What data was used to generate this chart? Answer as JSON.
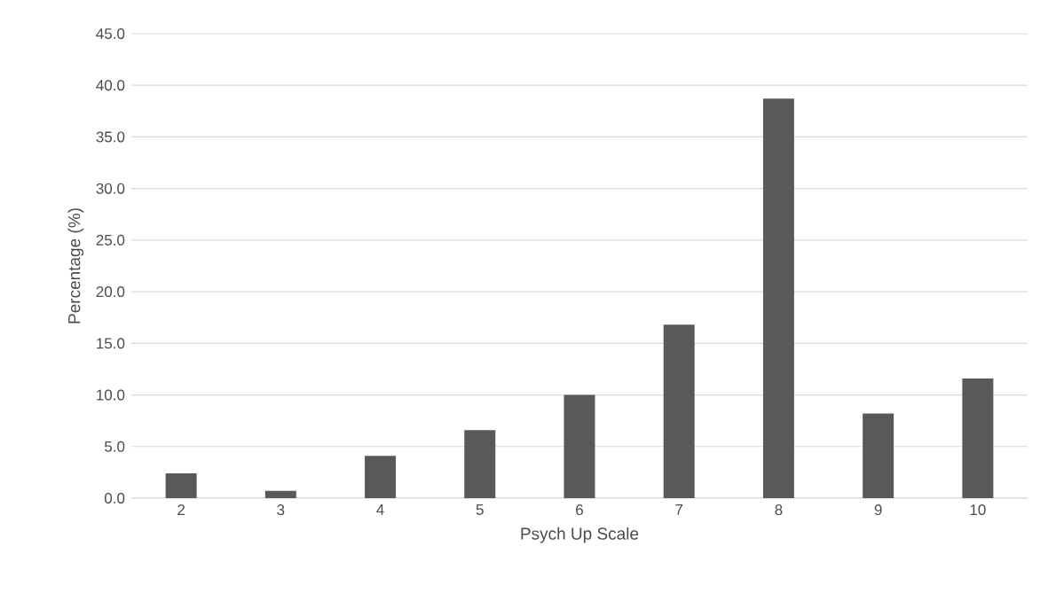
{
  "chart_data": {
    "type": "bar",
    "xlabel": "Psych Up Scale",
    "ylabel": "Percentage (%)",
    "categories": [
      "2",
      "3",
      "4",
      "5",
      "6",
      "7",
      "8",
      "9",
      "10"
    ],
    "values": [
      2.4,
      0.7,
      4.1,
      6.6,
      10.0,
      16.8,
      38.7,
      8.2,
      11.6
    ],
    "color": "#595959",
    "ylim": [
      0,
      45
    ],
    "yticks": [
      {
        "value": 0,
        "label": "0.0"
      },
      {
        "value": 5,
        "label": "5.0"
      },
      {
        "value": 10,
        "label": "10.0"
      },
      {
        "value": 15,
        "label": "15.0"
      },
      {
        "value": 20,
        "label": "20.0"
      },
      {
        "value": 25,
        "label": "25.0"
      },
      {
        "value": 30,
        "label": "30.0"
      },
      {
        "value": 35,
        "label": "35.0"
      },
      {
        "value": 40,
        "label": "40.0"
      },
      {
        "value": 45,
        "label": "45.0"
      }
    ],
    "grid": "y"
  }
}
